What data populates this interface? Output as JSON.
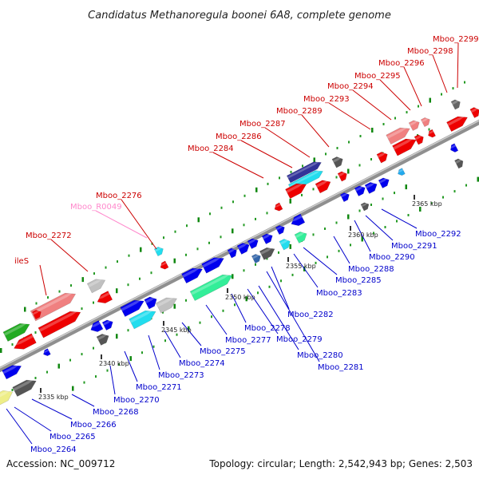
{
  "title": "Candidatus Methanoregula boonei 6A8, complete genome",
  "footer": {
    "accession": "Accession: NC_009712",
    "topology": "Topology: circular; Length: 2,542,943 bp; Genes: 2,503"
  },
  "colors": {
    "forward_label": "#cc0000",
    "reverse_label": "#0000cc",
    "rna_label": "#ff88cc",
    "backbone": "#8f8f8f",
    "tick_green": "#118811",
    "tick_dark": "#333333"
  },
  "kbp_markers": [
    "2335 kbp",
    "2340 kbp",
    "2345 kbp",
    "2350 kbp",
    "2355 kbp",
    "2360 kbp",
    "2365 kbp"
  ],
  "labels_top": [
    "ileS",
    "Mboo_2272",
    "Mboo_R0049",
    "Mboo_2276",
    "Mboo_2284",
    "Mboo_2286",
    "Mboo_2287",
    "Mboo_2289",
    "Mboo_2293",
    "Mboo_2294",
    "Mboo_2295",
    "Mboo_2296",
    "Mboo_2298",
    "Mboo_2299"
  ],
  "labels_bottom": [
    "Mboo_2264",
    "Mboo_2265",
    "Mboo_2266",
    "Mboo_2268",
    "Mboo_2270",
    "Mboo_2271",
    "Mboo_2273",
    "Mboo_2274",
    "Mboo_2275",
    "Mboo_2277",
    "Mboo_2278",
    "Mboo_2279",
    "Mboo_2280",
    "Mboo_2281",
    "Mboo_2282",
    "Mboo_2283",
    "Mboo_2285",
    "Mboo_2288",
    "Mboo_2290",
    "Mboo_2291",
    "Mboo_2292"
  ]
}
